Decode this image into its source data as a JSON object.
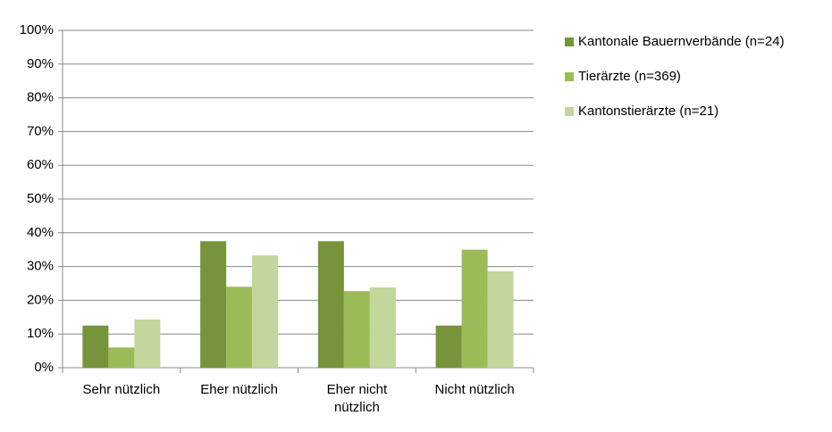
{
  "chart_data": {
    "type": "bar",
    "categories": [
      "Sehr nützlich",
      "Eher nützlich",
      "Eher nicht nützlich",
      "Nicht nützlich"
    ],
    "series": [
      {
        "name": "Kantonale Bauernverbände (n=24)",
        "color": "#77933c",
        "values": [
          12.5,
          37.5,
          37.5,
          12.5
        ]
      },
      {
        "name": "Tierärzte (n=369)",
        "color": "#9bbb59",
        "values": [
          6,
          24,
          22.7,
          35
        ]
      },
      {
        "name": "Kantonstierärzte (n=21)",
        "color": "#c3d69b",
        "values": [
          14.3,
          33.3,
          23.8,
          28.6
        ]
      }
    ],
    "ylim": [
      0,
      100
    ],
    "yticks": [
      {
        "value": 0,
        "label": "0%"
      },
      {
        "value": 10,
        "label": "10%"
      },
      {
        "value": 20,
        "label": "20%"
      },
      {
        "value": 30,
        "label": "30%"
      },
      {
        "value": 40,
        "label": "40%"
      },
      {
        "value": 50,
        "label": "50%"
      },
      {
        "value": 60,
        "label": "60%"
      },
      {
        "value": 70,
        "label": "70%"
      },
      {
        "value": 80,
        "label": "80%"
      },
      {
        "value": 90,
        "label": "90%"
      },
      {
        "value": 100,
        "label": "100%"
      }
    ],
    "grid": true,
    "legend": "right"
  }
}
